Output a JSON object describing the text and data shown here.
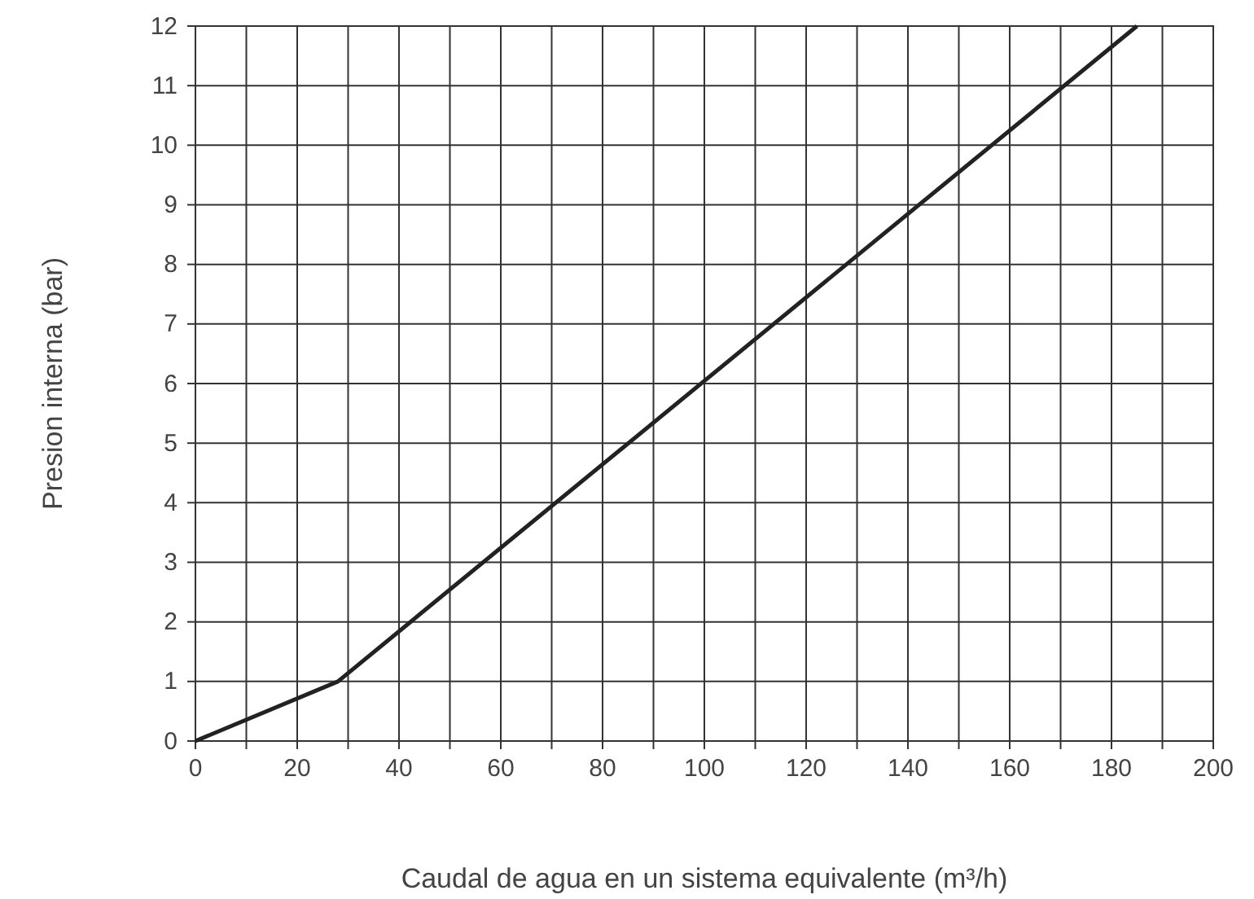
{
  "chart_data": {
    "type": "line",
    "xlabel": "Caudal de agua en un sistema equivalente (m³/h)",
    "ylabel": "Presion interna (bar)",
    "x": [
      0,
      28,
      185
    ],
    "series": [
      {
        "color": "#222222",
        "values": [
          0,
          1,
          12
        ]
      }
    ],
    "xlim": [
      0,
      200
    ],
    "xticks": [
      0,
      {
        "value": 10,
        "label": null
      },
      20,
      {
        "value": 30,
        "label": null
      },
      40,
      {
        "value": 50,
        "label": null
      },
      60,
      {
        "value": 70,
        "label": null
      },
      80,
      {
        "value": 90,
        "label": null
      },
      100,
      {
        "value": 110,
        "label": null
      },
      120,
      {
        "value": 130,
        "label": null
      },
      140,
      {
        "value": 150,
        "label": null
      },
      160,
      {
        "value": 170,
        "label": null
      },
      180,
      {
        "value": 190,
        "label": null
      },
      200
    ],
    "ylim": [
      0,
      12
    ],
    "yticks": [
      0,
      1,
      2,
      3,
      4,
      5,
      6,
      7,
      8,
      9,
      10,
      11,
      12
    ],
    "grid": true,
    "marker": "none",
    "line_style": "solid"
  }
}
